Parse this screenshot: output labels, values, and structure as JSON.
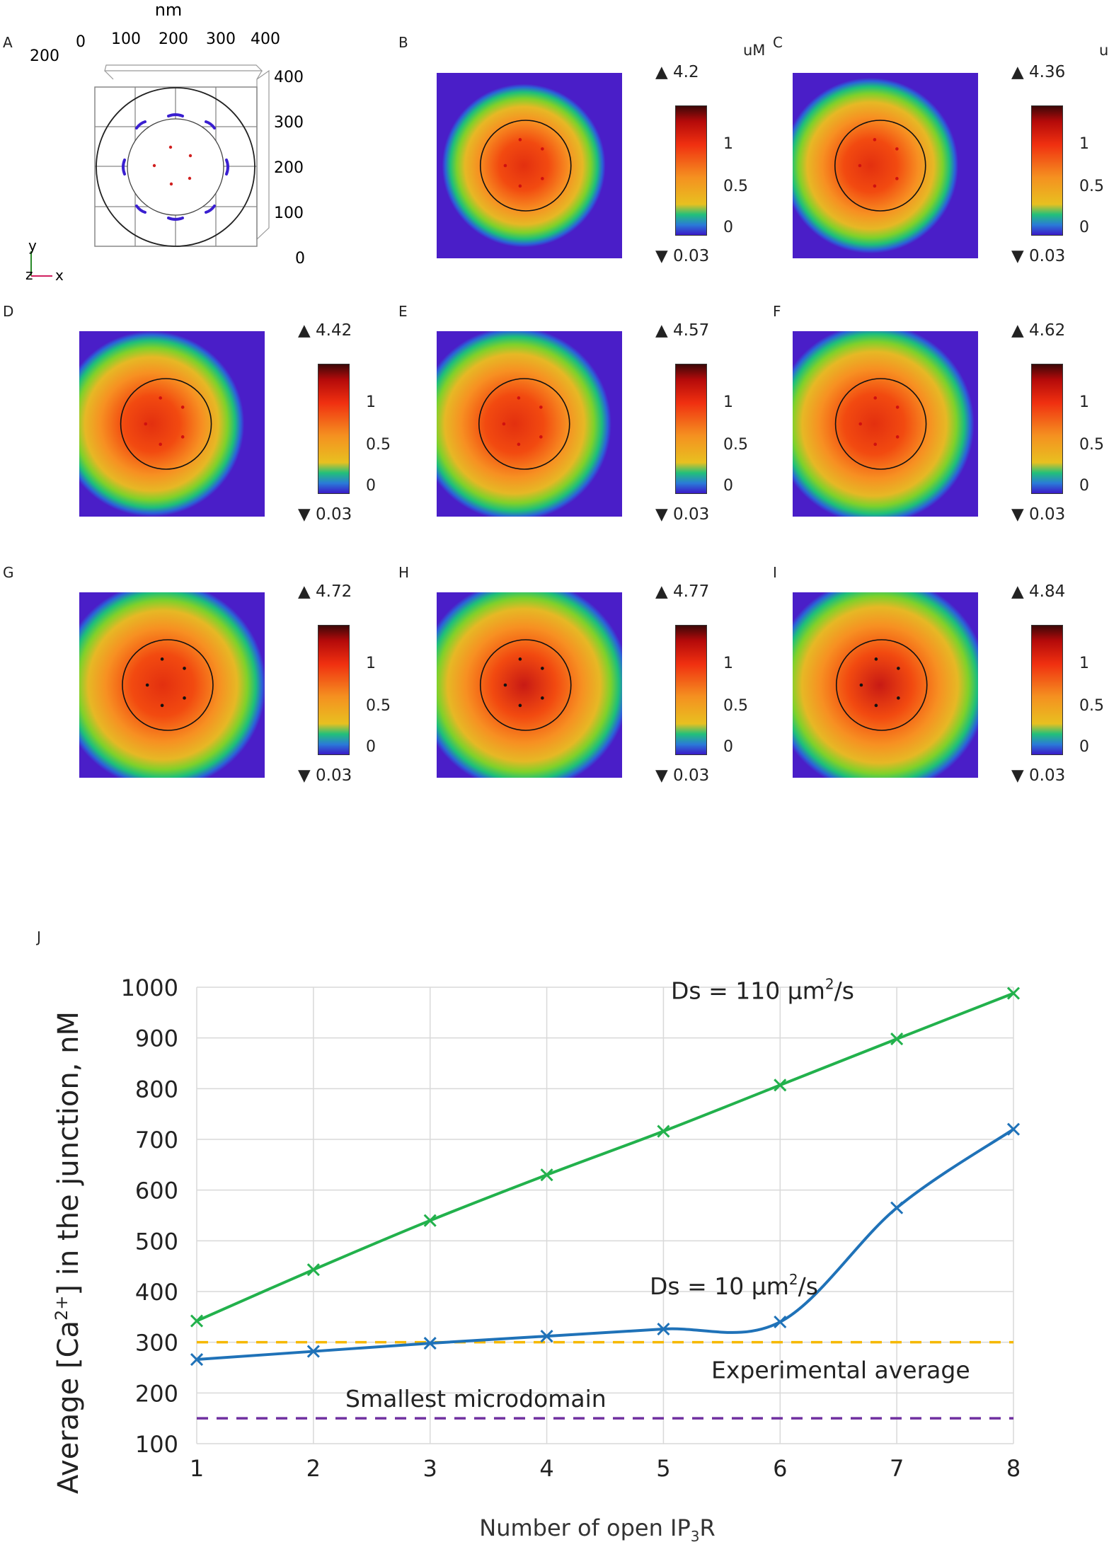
{
  "panelA": {
    "label": "A",
    "unit": "nm",
    "top_ticks": [
      "0",
      "100",
      "200",
      "300",
      "400"
    ],
    "extra_tick": "200",
    "right_ticks": [
      "400",
      "300",
      "200",
      "100",
      "0"
    ],
    "axis_y": "y",
    "axis_z": "z",
    "axis_x": "x"
  },
  "heatmaps": [
    {
      "label": "B",
      "max": "▲ 4.2",
      "min": "▼ 0.03",
      "unit": "uM",
      "spread": 0.55,
      "intensity": 0.62,
      "shift": 0.0
    },
    {
      "label": "C",
      "max": "▲ 4.36",
      "min": "▼ 0.03",
      "unit": "uM",
      "spread": 0.7,
      "intensity": 0.68,
      "shift": -0.05
    },
    {
      "label": "D",
      "max": "▲ 4.42",
      "min": "▼ 0.03",
      "unit": "",
      "spread": 0.82,
      "intensity": 0.72,
      "shift": -0.08
    },
    {
      "label": "E",
      "max": "▲ 4.57",
      "min": "▼ 0.03",
      "unit": "",
      "spread": 0.92,
      "intensity": 0.76,
      "shift": -0.05
    },
    {
      "label": "F",
      "max": "▲ 4.62",
      "min": "▼ 0.03",
      "unit": "",
      "spread": 1.0,
      "intensity": 0.8,
      "shift": -0.03
    },
    {
      "label": "G",
      "max": "▲ 4.72",
      "min": "▼ 0.03",
      "unit": "",
      "spread": 1.08,
      "intensity": 0.84,
      "shift": -0.02
    },
    {
      "label": "H",
      "max": "▲ 4.77",
      "min": "▼ 0.03",
      "unit": "",
      "spread": 1.14,
      "intensity": 0.88,
      "shift": 0.0
    },
    {
      "label": "I",
      "max": "▲ 4.84",
      "min": "▼ 0.03",
      "unit": "",
      "spread": 1.2,
      "intensity": 0.93,
      "shift": 0.0
    }
  ],
  "colorbar_ticks": [
    "1",
    "0.5",
    "0"
  ],
  "chart_data": {
    "type": "line",
    "panel_label": "J",
    "xlabel": "Number of open IP",
    "xlabel_sub": "3",
    "xlabel_tail": "R",
    "ylabel": "Average [Ca",
    "ylabel_sup": "2+",
    "ylabel_tail": "] in the junction, nM",
    "x": [
      1,
      2,
      3,
      4,
      5,
      6,
      7,
      8
    ],
    "xlim": [
      1,
      8
    ],
    "ylim": [
      100,
      1000
    ],
    "yticks": [
      100,
      200,
      300,
      400,
      500,
      600,
      700,
      800,
      900,
      1000
    ],
    "grid": true,
    "series": [
      {
        "name": "Ds = 110 µm²/s",
        "label_main": "Ds = 110 µm",
        "label_sup": "2",
        "label_tail": "/s",
        "color": "#22b14c",
        "values": [
          342,
          443,
          540,
          630,
          716,
          807,
          898,
          988
        ]
      },
      {
        "name": "Ds = 10 µm²/s",
        "label_main": "Ds = 10 µm",
        "label_sup": "2",
        "label_tail": "/s",
        "color": "#1f72b8",
        "values": [
          266,
          282,
          298,
          312,
          326,
          340,
          565,
          720
        ]
      }
    ],
    "reference_lines": [
      {
        "name": "Experimental average",
        "value": 300,
        "color": "#f5b800"
      },
      {
        "name": "Smallest microdomain",
        "value": 150,
        "color": "#7030a0"
      }
    ]
  }
}
